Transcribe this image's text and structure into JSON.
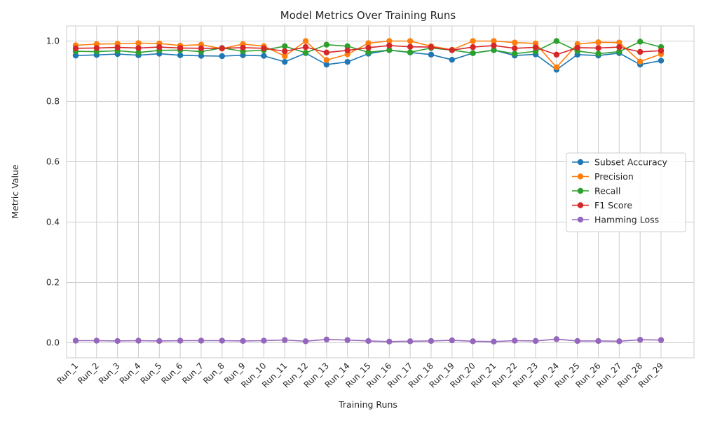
{
  "chart_data": {
    "type": "line",
    "title": "Model Metrics Over Training Runs",
    "xlabel": "Training Runs",
    "ylabel": "Metric Value",
    "ylim": [
      -0.05,
      1.05
    ],
    "yticks": [
      0.0,
      0.2,
      0.4,
      0.6,
      0.8,
      1.0
    ],
    "ytick_labels": [
      "0.0",
      "0.2",
      "0.4",
      "0.6",
      "0.8",
      "1.0"
    ],
    "grid": true,
    "legend_position": "center-right",
    "categories": [
      "Run_1",
      "Run_2",
      "Run_3",
      "Run_4",
      "Run_5",
      "Run_6",
      "Run_7",
      "Run_8",
      "Run_9",
      "Run_10",
      "Run_11",
      "Run_12",
      "Run_13",
      "Run_14",
      "Run_15",
      "Run_16",
      "Run_17",
      "Run_18",
      "Run_19",
      "Run_20",
      "Run_21",
      "Run_22",
      "Run_23",
      "Run_24",
      "Run_25",
      "Run_26",
      "Run_27",
      "Run_28",
      "Run_29"
    ],
    "series": [
      {
        "name": "Subset Accuracy",
        "color": "#1f77b4",
        "values": [
          0.952,
          0.954,
          0.957,
          0.953,
          0.958,
          0.953,
          0.951,
          0.95,
          0.953,
          0.951,
          0.931,
          0.96,
          0.922,
          0.931,
          0.958,
          0.97,
          0.962,
          0.955,
          0.938,
          0.96,
          0.97,
          0.952,
          0.956,
          0.905,
          0.955,
          0.952,
          0.96,
          0.922,
          0.935
        ]
      },
      {
        "name": "Precision",
        "color": "#ff7f0e",
        "values": [
          0.986,
          0.99,
          0.991,
          0.993,
          0.992,
          0.985,
          0.988,
          0.975,
          0.99,
          0.983,
          0.95,
          1.0,
          0.937,
          0.956,
          0.993,
          1.0,
          1.0,
          0.983,
          0.971,
          1.0,
          1.0,
          0.995,
          0.992,
          0.913,
          0.99,
          0.996,
          0.995,
          0.932,
          0.957
        ]
      },
      {
        "name": "Recall",
        "color": "#2ca02c",
        "values": [
          0.966,
          0.965,
          0.968,
          0.962,
          0.969,
          0.97,
          0.965,
          0.977,
          0.966,
          0.97,
          0.983,
          0.961,
          0.988,
          0.983,
          0.963,
          0.97,
          0.963,
          0.977,
          0.97,
          0.96,
          0.97,
          0.958,
          0.966,
          1.0,
          0.967,
          0.958,
          0.965,
          0.998,
          0.98
        ]
      },
      {
        "name": "F1 Score",
        "color": "#d62728",
        "values": [
          0.976,
          0.977,
          0.979,
          0.977,
          0.98,
          0.977,
          0.976,
          0.976,
          0.978,
          0.976,
          0.966,
          0.98,
          0.962,
          0.969,
          0.978,
          0.985,
          0.981,
          0.98,
          0.97,
          0.98,
          0.985,
          0.976,
          0.979,
          0.955,
          0.978,
          0.977,
          0.98,
          0.964,
          0.968
        ]
      },
      {
        "name": "Hamming Loss",
        "color": "#9467bd",
        "values": [
          0.007,
          0.007,
          0.006,
          0.007,
          0.006,
          0.007,
          0.007,
          0.007,
          0.006,
          0.007,
          0.009,
          0.005,
          0.011,
          0.009,
          0.006,
          0.004,
          0.005,
          0.006,
          0.008,
          0.005,
          0.004,
          0.007,
          0.006,
          0.012,
          0.006,
          0.006,
          0.005,
          0.01,
          0.009
        ]
      }
    ]
  }
}
